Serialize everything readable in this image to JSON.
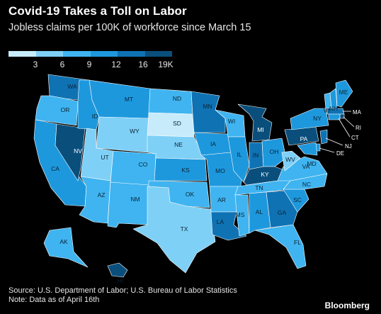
{
  "header": {
    "title": "Covid-19 Takes a Toll on Labor",
    "subtitle": "Jobless claims per 100K of workforce since March 15"
  },
  "legend": {
    "ticks": [
      "3",
      "6",
      "9",
      "12",
      "16",
      "19K"
    ],
    "colors": [
      "#c7ebfb",
      "#7fd0f6",
      "#3fb4f0",
      "#1e98dd",
      "#0f72b3",
      "#0a4f7c"
    ]
  },
  "states": [
    {
      "abbr": "WA",
      "bin": 4
    },
    {
      "abbr": "OR",
      "bin": 2
    },
    {
      "abbr": "CA",
      "bin": 3
    },
    {
      "abbr": "ID",
      "bin": 3
    },
    {
      "abbr": "NV",
      "bin": 5
    },
    {
      "abbr": "MT",
      "bin": 3
    },
    {
      "abbr": "WY",
      "bin": 1
    },
    {
      "abbr": "UT",
      "bin": 1
    },
    {
      "abbr": "AZ",
      "bin": 2
    },
    {
      "abbr": "CO",
      "bin": 2
    },
    {
      "abbr": "NM",
      "bin": 2
    },
    {
      "abbr": "ND",
      "bin": 2
    },
    {
      "abbr": "SD",
      "bin": 0
    },
    {
      "abbr": "NE",
      "bin": 1
    },
    {
      "abbr": "KS",
      "bin": 3
    },
    {
      "abbr": "OK",
      "bin": 2
    },
    {
      "abbr": "TX",
      "bin": 1
    },
    {
      "abbr": "MN",
      "bin": 4
    },
    {
      "abbr": "IA",
      "bin": 3
    },
    {
      "abbr": "MO",
      "bin": 3
    },
    {
      "abbr": "AR",
      "bin": 2
    },
    {
      "abbr": "LA",
      "bin": 4
    },
    {
      "abbr": "WI",
      "bin": 2
    },
    {
      "abbr": "IL",
      "bin": 3
    },
    {
      "abbr": "MI",
      "bin": 5
    },
    {
      "abbr": "IN",
      "bin": 4
    },
    {
      "abbr": "OH",
      "bin": 3
    },
    {
      "abbr": "KY",
      "bin": 5
    },
    {
      "abbr": "TN",
      "bin": 2
    },
    {
      "abbr": "MS",
      "bin": 2
    },
    {
      "abbr": "AL",
      "bin": 3
    },
    {
      "abbr": "GA",
      "bin": 4
    },
    {
      "abbr": "FL",
      "bin": 2
    },
    {
      "abbr": "SC",
      "bin": 3
    },
    {
      "abbr": "NC",
      "bin": 2
    },
    {
      "abbr": "VA",
      "bin": 2
    },
    {
      "abbr": "WV",
      "bin": 1
    },
    {
      "abbr": "PA",
      "bin": 5
    },
    {
      "abbr": "NY",
      "bin": 3
    },
    {
      "abbr": "VT",
      "bin": 2
    },
    {
      "abbr": "NH",
      "bin": 3
    },
    {
      "abbr": "ME",
      "bin": 3
    },
    {
      "abbr": "MA",
      "bin": 4
    },
    {
      "abbr": "RI",
      "bin": 5
    },
    {
      "abbr": "CT",
      "bin": 3
    },
    {
      "abbr": "NJ",
      "bin": 4
    },
    {
      "abbr": "DE",
      "bin": 3
    },
    {
      "abbr": "MD",
      "bin": 3
    },
    {
      "abbr": "AK",
      "bin": 2
    },
    {
      "abbr": "HI",
      "bin": 5
    }
  ],
  "callouts": [
    "MA",
    "RI",
    "CT",
    "NJ",
    "DE"
  ],
  "footer": {
    "source": "Source: U.S. Department of Labor; U.S. Bureau of Labor Statistics",
    "note": "Note: Data as of April 16th",
    "brand": "Bloomberg"
  }
}
